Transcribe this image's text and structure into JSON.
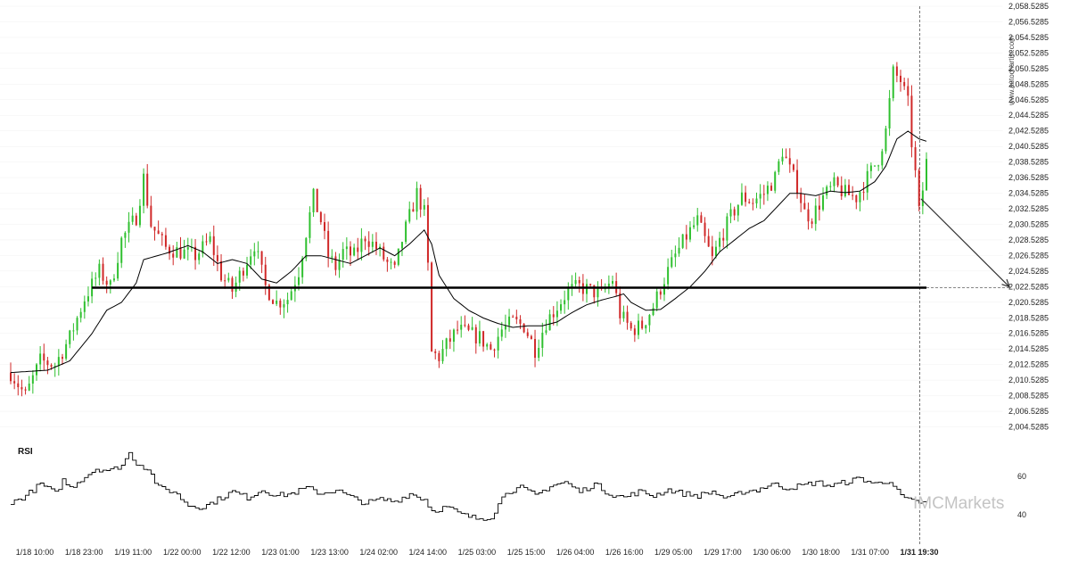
{
  "watermark": "www.autochartist.com",
  "brand": "IMCMarkets",
  "colors": {
    "up": "#2fc02f",
    "down": "#d02828",
    "line": "#000000",
    "grid": "#d8d8d8"
  },
  "chart_data": [
    {
      "type": "candlestick",
      "title": "",
      "ylim": [
        2004.0,
        2058.8
      ],
      "y_ticks": [
        "2,004.5285",
        "2,006.5285",
        "2,008.5285",
        "2,010.5285",
        "2,012.5285",
        "2,014.5285",
        "2,016.5285",
        "2,018.5285",
        "2,020.5285",
        "2,022.5285",
        "2,024.5285",
        "2,026.5285",
        "2,028.5285",
        "2,030.5285",
        "2,032.5285",
        "2,034.5285",
        "2,036.5285",
        "2,038.5285",
        "2,040.5285",
        "2,042.5285",
        "2,044.5285",
        "2,046.5285",
        "2,048.5285",
        "2,050.5285",
        "2,052.5285",
        "2,054.5285",
        "2,056.5285",
        "2,058.5285"
      ],
      "x_ticks": [
        "1/18 10:00",
        "1/18 23:00",
        "1/19 11:00",
        "1/22 00:00",
        "1/22 12:00",
        "1/23 01:00",
        "1/23 13:00",
        "1/24 02:00",
        "1/24 14:00",
        "1/25 03:00",
        "1/25 15:00",
        "1/26 04:00",
        "1/26 16:00",
        "1/29 05:00",
        "1/29 17:00",
        "1/30 06:00",
        "1/30 18:00",
        "1/31 07:00"
      ],
      "current_time_label": "1/31 19:30",
      "price_path": [
        [
          0,
          2011.5
        ],
        [
          4,
          2008.5
        ],
        [
          8,
          2013.0
        ],
        [
          12,
          2012.5
        ],
        [
          16,
          2016.0
        ],
        [
          20,
          2021.0
        ],
        [
          24,
          2024.5
        ],
        [
          27,
          2022.5
        ],
        [
          30,
          2028.5
        ],
        [
          34,
          2031.5
        ],
        [
          36,
          2036.5
        ],
        [
          38,
          2030.5
        ],
        [
          42,
          2027.5
        ],
        [
          46,
          2027.0
        ],
        [
          50,
          2026.5
        ],
        [
          54,
          2028.5
        ],
        [
          57,
          2024.0
        ],
        [
          60,
          2022.0
        ],
        [
          63,
          2025.0
        ],
        [
          66,
          2028.0
        ],
        [
          69,
          2022.5
        ],
        [
          72,
          2020.5
        ],
        [
          75,
          2021.0
        ],
        [
          78,
          2024.5
        ],
        [
          80,
          2029.5
        ],
        [
          82,
          2034.0
        ],
        [
          84,
          2031.0
        ],
        [
          86,
          2026.5
        ],
        [
          88,
          2025.0
        ],
        [
          90,
          2027.0
        ],
        [
          93,
          2026.5
        ],
        [
          96,
          2029.0
        ],
        [
          99,
          2027.5
        ],
        [
          102,
          2025.5
        ],
        [
          104,
          2024.5
        ],
        [
          106,
          2028.5
        ],
        [
          108,
          2031.5
        ],
        [
          110,
          2034.5
        ],
        [
          112,
          2032.0
        ],
        [
          113,
          2025.0
        ],
        [
          114,
          2014.0
        ],
        [
          116,
          2013.5
        ],
        [
          118,
          2015.0
        ],
        [
          121,
          2017.0
        ],
        [
          124,
          2016.5
        ],
        [
          127,
          2016.0
        ],
        [
          130,
          2014.5
        ],
        [
          133,
          2017.0
        ],
        [
          136,
          2018.0
        ],
        [
          139,
          2017.5
        ],
        [
          142,
          2014.5
        ],
        [
          145,
          2018.0
        ],
        [
          148,
          2020.0
        ],
        [
          151,
          2022.0
        ],
        [
          154,
          2022.5
        ],
        [
          157,
          2022.0
        ],
        [
          160,
          2021.5
        ],
        [
          163,
          2023.5
        ],
        [
          165,
          2019.0
        ],
        [
          168,
          2017.0
        ],
        [
          171,
          2017.5
        ],
        [
          174,
          2020.0
        ],
        [
          177,
          2023.5
        ],
        [
          180,
          2026.5
        ],
        [
          183,
          2029.0
        ],
        [
          186,
          2031.0
        ],
        [
          188,
          2028.5
        ],
        [
          190,
          2026.0
        ],
        [
          192,
          2028.5
        ],
        [
          195,
          2031.5
        ],
        [
          198,
          2034.0
        ],
        [
          201,
          2033.5
        ],
        [
          204,
          2034.5
        ],
        [
          207,
          2036.5
        ],
        [
          209,
          2040.0
        ],
        [
          211,
          2037.5
        ],
        [
          213,
          2035.5
        ],
        [
          215,
          2032.0
        ],
        [
          217,
          2031.5
        ],
        [
          220,
          2034.0
        ],
        [
          223,
          2035.5
        ],
        [
          226,
          2034.5
        ],
        [
          229,
          2034.0
        ],
        [
          232,
          2036.5
        ],
        [
          235,
          2039.0
        ],
        [
          237,
          2042.5
        ],
        [
          239,
          2050.0
        ],
        [
          241,
          2049.0
        ],
        [
          243,
          2046.0
        ],
        [
          244,
          2041.0
        ],
        [
          245,
          2037.0
        ],
        [
          246,
          2032.0
        ],
        [
          247,
          2035.0
        ],
        [
          248,
          2038.5
        ]
      ],
      "ma_path": [
        [
          0,
          2011.5
        ],
        [
          10,
          2011.8
        ],
        [
          16,
          2013.0
        ],
        [
          22,
          2016.5
        ],
        [
          26,
          2019.5
        ],
        [
          30,
          2020.5
        ],
        [
          34,
          2023.0
        ],
        [
          36,
          2026.0
        ],
        [
          42,
          2026.8
        ],
        [
          48,
          2027.8
        ],
        [
          52,
          2027.0
        ],
        [
          56,
          2025.5
        ],
        [
          60,
          2026.0
        ],
        [
          64,
          2025.5
        ],
        [
          68,
          2023.5
        ],
        [
          72,
          2023.0
        ],
        [
          76,
          2024.5
        ],
        [
          80,
          2026.5
        ],
        [
          84,
          2026.5
        ],
        [
          88,
          2026.0
        ],
        [
          92,
          2025.5
        ],
        [
          96,
          2026.5
        ],
        [
          100,
          2027.5
        ],
        [
          104,
          2026.5
        ],
        [
          108,
          2028.0
        ],
        [
          112,
          2029.8
        ],
        [
          114,
          2028.0
        ],
        [
          116,
          2024.0
        ],
        [
          120,
          2021.0
        ],
        [
          124,
          2019.5
        ],
        [
          128,
          2018.5
        ],
        [
          132,
          2017.8
        ],
        [
          136,
          2017.3
        ],
        [
          140,
          2017.5
        ],
        [
          144,
          2017.5
        ],
        [
          148,
          2018.0
        ],
        [
          152,
          2019.2
        ],
        [
          156,
          2020.2
        ],
        [
          160,
          2020.8
        ],
        [
          164,
          2021.3
        ],
        [
          166,
          2021.6
        ],
        [
          168,
          2020.5
        ],
        [
          172,
          2019.5
        ],
        [
          176,
          2019.6
        ],
        [
          180,
          2021.0
        ],
        [
          184,
          2022.5
        ],
        [
          188,
          2024.5
        ],
        [
          192,
          2027.0
        ],
        [
          196,
          2028.5
        ],
        [
          200,
          2030.0
        ],
        [
          204,
          2031.0
        ],
        [
          208,
          2033.0
        ],
        [
          211,
          2034.5
        ],
        [
          214,
          2034.5
        ],
        [
          218,
          2034.2
        ],
        [
          222,
          2034.8
        ],
        [
          226,
          2034.6
        ],
        [
          230,
          2034.8
        ],
        [
          234,
          2036.0
        ],
        [
          237,
          2038.0
        ],
        [
          240,
          2041.5
        ],
        [
          243,
          2042.5
        ],
        [
          246,
          2041.5
        ],
        [
          248,
          2041.2
        ]
      ],
      "support_level": 2022.4,
      "support_from_bar": 22,
      "support_to_bar": 248,
      "forecast": {
        "from_bar": 248,
        "from_price": 2033.8,
        "to_price": 2022.5
      },
      "last_price": 2038.5,
      "bars": 249
    },
    {
      "type": "line",
      "title": "RSI",
      "ylim": [
        35,
        73
      ],
      "y_ticks": [
        "60",
        "40"
      ],
      "rsi_path": [
        [
          0,
          46
        ],
        [
          4,
          50
        ],
        [
          8,
          56
        ],
        [
          12,
          51
        ],
        [
          14,
          58
        ],
        [
          16,
          54
        ],
        [
          20,
          60
        ],
        [
          23,
          64
        ],
        [
          27,
          63
        ],
        [
          30,
          66
        ],
        [
          32,
          72
        ],
        [
          34,
          67
        ],
        [
          37,
          64
        ],
        [
          40,
          54
        ],
        [
          44,
          52
        ],
        [
          48,
          45
        ],
        [
          52,
          44
        ],
        [
          56,
          48
        ],
        [
          60,
          52
        ],
        [
          64,
          49
        ],
        [
          68,
          53
        ],
        [
          72,
          50
        ],
        [
          76,
          51
        ],
        [
          80,
          54
        ],
        [
          84,
          51
        ],
        [
          88,
          53
        ],
        [
          92,
          49
        ],
        [
          96,
          46
        ],
        [
          100,
          48
        ],
        [
          104,
          47
        ],
        [
          108,
          51
        ],
        [
          112,
          48
        ],
        [
          114,
          42
        ],
        [
          118,
          44
        ],
        [
          122,
          40
        ],
        [
          126,
          38
        ],
        [
          130,
          39
        ],
        [
          134,
          52
        ],
        [
          138,
          54
        ],
        [
          142,
          50
        ],
        [
          146,
          55
        ],
        [
          150,
          57
        ],
        [
          154,
          52
        ],
        [
          158,
          56
        ],
        [
          162,
          51
        ],
        [
          166,
          49
        ],
        [
          170,
          52
        ],
        [
          174,
          50
        ],
        [
          178,
          53
        ],
        [
          182,
          51
        ],
        [
          186,
          50
        ],
        [
          190,
          52
        ],
        [
          194,
          48
        ],
        [
          198,
          52
        ],
        [
          202,
          53
        ],
        [
          206,
          56
        ],
        [
          210,
          54
        ],
        [
          214,
          55
        ],
        [
          218,
          57
        ],
        [
          222,
          55
        ],
        [
          226,
          57
        ],
        [
          230,
          59
        ],
        [
          234,
          56
        ],
        [
          238,
          58
        ],
        [
          240,
          52
        ],
        [
          242,
          48
        ],
        [
          244,
          47
        ],
        [
          248,
          46
        ]
      ]
    }
  ]
}
